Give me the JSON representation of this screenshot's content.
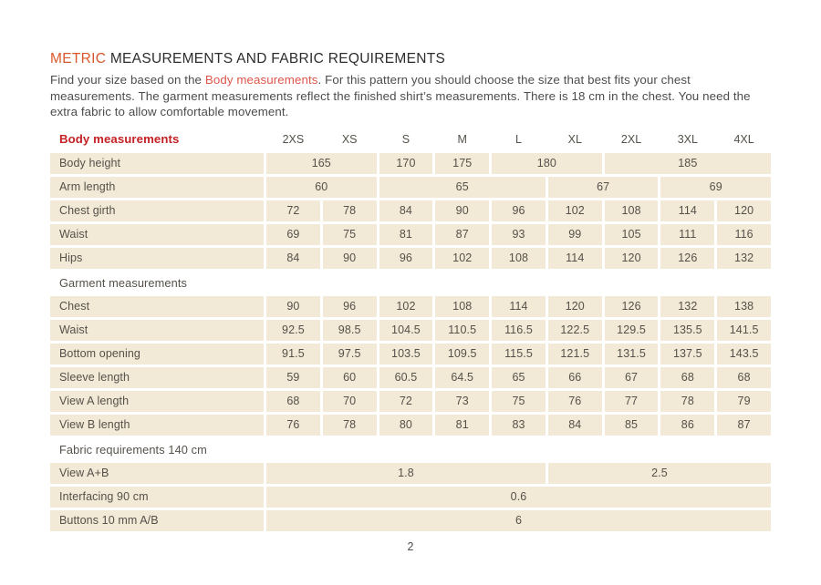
{
  "page": {
    "number": "2"
  },
  "title": {
    "accent": "METRIC",
    "rest": " MEASUREMENTS AND FABRIC REQUIREMENTS"
  },
  "intro": {
    "before_link": "Find your size based on the ",
    "link": "Body measurements",
    "after_link": ". For this pattern you should choose the size that best fits your chest measurements. The garment measurements reflect the finished shirt’s measurements. There is 18 cm in the chest. You need the extra fabric to allow comfortable movement."
  },
  "colors": {
    "accent_orange": "#d9582b",
    "link_red": "#de564b",
    "header_red": "#c32125",
    "cell_background": "#f2e9d6",
    "table_text": "#55514a"
  },
  "table": {
    "header_label": "Body measurements",
    "sizes": [
      "2XS",
      "XS",
      "S",
      "M",
      "L",
      "XL",
      "2XL",
      "3XL",
      "4XL"
    ],
    "rows": [
      {
        "type": "data",
        "label": "Body height",
        "cells": [
          {
            "value": "165",
            "span": 2
          },
          {
            "value": "170",
            "span": 1
          },
          {
            "value": "175",
            "span": 1
          },
          {
            "value": "180",
            "span": 2
          },
          {
            "value": "185",
            "span": 3
          }
        ]
      },
      {
        "type": "data",
        "label": "Arm length",
        "cells": [
          {
            "value": "60",
            "span": 2
          },
          {
            "value": "65",
            "span": 3
          },
          {
            "value": "67",
            "span": 2
          },
          {
            "value": "69",
            "span": 2
          }
        ]
      },
      {
        "type": "data",
        "label": "Chest girth",
        "cells": [
          {
            "value": "72",
            "span": 1
          },
          {
            "value": "78",
            "span": 1
          },
          {
            "value": "84",
            "span": 1
          },
          {
            "value": "90",
            "span": 1
          },
          {
            "value": "96",
            "span": 1
          },
          {
            "value": "102",
            "span": 1
          },
          {
            "value": "108",
            "span": 1
          },
          {
            "value": "114",
            "span": 1
          },
          {
            "value": "120",
            "span": 1
          }
        ]
      },
      {
        "type": "data",
        "label": "Waist",
        "cells": [
          {
            "value": "69",
            "span": 1
          },
          {
            "value": "75",
            "span": 1
          },
          {
            "value": "81",
            "span": 1
          },
          {
            "value": "87",
            "span": 1
          },
          {
            "value": "93",
            "span": 1
          },
          {
            "value": "99",
            "span": 1
          },
          {
            "value": "105",
            "span": 1
          },
          {
            "value": "111",
            "span": 1
          },
          {
            "value": "116",
            "span": 1
          }
        ]
      },
      {
        "type": "data",
        "label": "Hips",
        "cells": [
          {
            "value": "84",
            "span": 1
          },
          {
            "value": "90",
            "span": 1
          },
          {
            "value": "96",
            "span": 1
          },
          {
            "value": "102",
            "span": 1
          },
          {
            "value": "108",
            "span": 1
          },
          {
            "value": "114",
            "span": 1
          },
          {
            "value": "120",
            "span": 1
          },
          {
            "value": "126",
            "span": 1
          },
          {
            "value": "132",
            "span": 1
          }
        ]
      },
      {
        "type": "section",
        "label": "Garment measurements"
      },
      {
        "type": "data",
        "label": "Chest",
        "cells": [
          {
            "value": "90",
            "span": 1
          },
          {
            "value": "96",
            "span": 1
          },
          {
            "value": "102",
            "span": 1
          },
          {
            "value": "108",
            "span": 1
          },
          {
            "value": "114",
            "span": 1
          },
          {
            "value": "120",
            "span": 1
          },
          {
            "value": "126",
            "span": 1
          },
          {
            "value": "132",
            "span": 1
          },
          {
            "value": "138",
            "span": 1
          }
        ]
      },
      {
        "type": "data",
        "label": "Waist",
        "cells": [
          {
            "value": "92.5",
            "span": 1
          },
          {
            "value": "98.5",
            "span": 1
          },
          {
            "value": "104.5",
            "span": 1
          },
          {
            "value": "110.5",
            "span": 1
          },
          {
            "value": "116.5",
            "span": 1
          },
          {
            "value": "122.5",
            "span": 1
          },
          {
            "value": "129.5",
            "span": 1
          },
          {
            "value": "135.5",
            "span": 1
          },
          {
            "value": "141.5",
            "span": 1
          }
        ]
      },
      {
        "type": "data",
        "label": "Bottom opening",
        "cells": [
          {
            "value": "91.5",
            "span": 1
          },
          {
            "value": "97.5",
            "span": 1
          },
          {
            "value": "103.5",
            "span": 1
          },
          {
            "value": "109.5",
            "span": 1
          },
          {
            "value": "115.5",
            "span": 1
          },
          {
            "value": "121.5",
            "span": 1
          },
          {
            "value": "131.5",
            "span": 1
          },
          {
            "value": "137.5",
            "span": 1
          },
          {
            "value": "143.5",
            "span": 1
          }
        ]
      },
      {
        "type": "data",
        "label": "Sleeve length",
        "cells": [
          {
            "value": "59",
            "span": 1
          },
          {
            "value": "60",
            "span": 1
          },
          {
            "value": "60.5",
            "span": 1
          },
          {
            "value": "64.5",
            "span": 1
          },
          {
            "value": "65",
            "span": 1
          },
          {
            "value": "66",
            "span": 1
          },
          {
            "value": "67",
            "span": 1
          },
          {
            "value": "68",
            "span": 1
          },
          {
            "value": "68",
            "span": 1
          }
        ]
      },
      {
        "type": "data",
        "label": "View A length",
        "cells": [
          {
            "value": "68",
            "span": 1
          },
          {
            "value": "70",
            "span": 1
          },
          {
            "value": "72",
            "span": 1
          },
          {
            "value": "73",
            "span": 1
          },
          {
            "value": "75",
            "span": 1
          },
          {
            "value": "76",
            "span": 1
          },
          {
            "value": "77",
            "span": 1
          },
          {
            "value": "78",
            "span": 1
          },
          {
            "value": "79",
            "span": 1
          }
        ]
      },
      {
        "type": "data",
        "label": "View B length",
        "cells": [
          {
            "value": "76",
            "span": 1
          },
          {
            "value": "78",
            "span": 1
          },
          {
            "value": "80",
            "span": 1
          },
          {
            "value": "81",
            "span": 1
          },
          {
            "value": "83",
            "span": 1
          },
          {
            "value": "84",
            "span": 1
          },
          {
            "value": "85",
            "span": 1
          },
          {
            "value": "86",
            "span": 1
          },
          {
            "value": "87",
            "span": 1
          }
        ]
      },
      {
        "type": "section",
        "label": "Fabric requirements 140 cm"
      },
      {
        "type": "data",
        "label": "View A+B",
        "cells": [
          {
            "value": "1.8",
            "span": 5
          },
          {
            "value": "2.5",
            "span": 4
          }
        ]
      },
      {
        "type": "data",
        "label": "Interfacing 90 cm",
        "cells": [
          {
            "value": "0.6",
            "span": 9
          }
        ]
      },
      {
        "type": "data",
        "label": "Buttons 10 mm A/B",
        "cells": [
          {
            "value": "6",
            "span": 9
          }
        ]
      }
    ]
  }
}
